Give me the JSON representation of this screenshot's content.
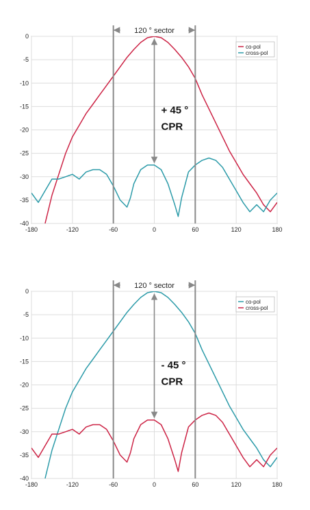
{
  "chart_data": [
    {
      "type": "line",
      "xlim": [
        -180,
        180
      ],
      "ylim": [
        -40,
        0
      ],
      "x_ticks": [
        -180,
        -120,
        -60,
        0,
        60,
        120,
        180
      ],
      "x_tick_labels": [
        "-180",
        "-120",
        "-60",
        "0",
        "60",
        "120",
        "180"
      ],
      "y_ticks": [
        0,
        -5,
        -10,
        -15,
        -20,
        -25,
        -30,
        -35,
        -40
      ],
      "y_tick_labels": [
        "0",
        "-5",
        "-10",
        "-15",
        "-20",
        "-25",
        "-30",
        "-35",
        "-40"
      ],
      "grid": true,
      "legend_position": "top-right",
      "sector_label": "120 ° sector",
      "sector_bounds": [
        -60,
        60
      ],
      "cpr_label_1": "+ 45 °",
      "cpr_label_2": "CPR",
      "cpr_arrow": [
        0,
        -27.5
      ],
      "series": [
        {
          "name": "co-pol",
          "color": "#cc2244",
          "x": [
            -160,
            -150,
            -140,
            -130,
            -120,
            -110,
            -100,
            -90,
            -80,
            -70,
            -60,
            -50,
            -40,
            -30,
            -20,
            -10,
            0,
            10,
            20,
            30,
            40,
            50,
            60,
            70,
            80,
            90,
            100,
            110,
            120,
            130,
            140,
            150,
            160,
            170,
            180
          ],
          "y": [
            -40,
            -34,
            -29.5,
            -25,
            -21.5,
            -19,
            -16.5,
            -14.5,
            -12.5,
            -10.5,
            -8.5,
            -6.5,
            -4.5,
            -2.8,
            -1.3,
            -0.3,
            0,
            -0.3,
            -1.3,
            -2.8,
            -4.5,
            -6.5,
            -9,
            -12.5,
            -15.5,
            -18.5,
            -21.5,
            -24.5,
            -27,
            -29.5,
            -31.5,
            -33.5,
            -36,
            -37.5,
            -35.5
          ]
        },
        {
          "name": "cross-pol",
          "color": "#2a9aa8",
          "x": [
            -180,
            -170,
            -160,
            -150,
            -140,
            -130,
            -120,
            -110,
            -100,
            -90,
            -80,
            -70,
            -60,
            -50,
            -40,
            -35,
            -30,
            -20,
            -10,
            0,
            10,
            20,
            30,
            35,
            40,
            50,
            60,
            70,
            80,
            90,
            100,
            110,
            120,
            130,
            140,
            150,
            160,
            170,
            180
          ],
          "y": [
            -33.5,
            -35.5,
            -33,
            -30.5,
            -30.5,
            -30,
            -29.5,
            -30.5,
            -29,
            -28.5,
            -28.5,
            -29.5,
            -32,
            -35,
            -36.5,
            -34.5,
            -31.5,
            -28.5,
            -27.5,
            -27.5,
            -28.5,
            -31.5,
            -36,
            -38.5,
            -34.5,
            -29,
            -27.5,
            -26.5,
            -26,
            -26.5,
            -28,
            -30.5,
            -33,
            -35.5,
            -37.5,
            -36,
            -37.5,
            -35,
            -33.5
          ]
        }
      ]
    },
    {
      "type": "line",
      "xlim": [
        -180,
        180
      ],
      "ylim": [
        -40,
        0
      ],
      "x_ticks": [
        -180,
        -120,
        -60,
        0,
        60,
        120,
        180
      ],
      "x_tick_labels": [
        "-180",
        "-120",
        "-60",
        "0",
        "60",
        "120",
        "180"
      ],
      "y_ticks": [
        0,
        -5,
        -10,
        -15,
        -20,
        -25,
        -30,
        -35,
        -40
      ],
      "y_tick_labels": [
        "0",
        "-5",
        "-10",
        "-15",
        "-20",
        "-25",
        "-30",
        "-35",
        "-40"
      ],
      "grid": true,
      "legend_position": "top-right",
      "sector_label": "120 ° sector",
      "sector_bounds": [
        -60,
        60
      ],
      "cpr_label_1": "- 45 °",
      "cpr_label_2": "CPR",
      "cpr_arrow": [
        0,
        -27.5
      ],
      "series": [
        {
          "name": "co-pol",
          "color": "#2a9aa8",
          "x": [
            -160,
            -150,
            -140,
            -130,
            -120,
            -110,
            -100,
            -90,
            -80,
            -70,
            -60,
            -50,
            -40,
            -30,
            -20,
            -10,
            0,
            10,
            20,
            30,
            40,
            50,
            60,
            70,
            80,
            90,
            100,
            110,
            120,
            130,
            140,
            150,
            160,
            170,
            180
          ],
          "y": [
            -40,
            -34,
            -29.5,
            -25,
            -21.5,
            -19,
            -16.5,
            -14.5,
            -12.5,
            -10.5,
            -8.5,
            -6.5,
            -4.5,
            -2.8,
            -1.3,
            -0.3,
            0,
            -0.3,
            -1.3,
            -2.8,
            -4.5,
            -6.5,
            -9,
            -12.5,
            -15.5,
            -18.5,
            -21.5,
            -24.5,
            -27,
            -29.5,
            -31.5,
            -33.5,
            -36,
            -37.5,
            -35.5
          ]
        },
        {
          "name": "cross-pol",
          "color": "#cc2244",
          "x": [
            -180,
            -170,
            -160,
            -150,
            -140,
            -130,
            -120,
            -110,
            -100,
            -90,
            -80,
            -70,
            -60,
            -50,
            -40,
            -35,
            -30,
            -20,
            -10,
            0,
            10,
            20,
            30,
            35,
            40,
            50,
            60,
            70,
            80,
            90,
            100,
            110,
            120,
            130,
            140,
            150,
            160,
            170,
            180
          ],
          "y": [
            -33.5,
            -35.5,
            -33,
            -30.5,
            -30.5,
            -30,
            -29.5,
            -30.5,
            -29,
            -28.5,
            -28.5,
            -29.5,
            -32,
            -35,
            -36.5,
            -34.5,
            -31.5,
            -28.5,
            -27.5,
            -27.5,
            -28.5,
            -31.5,
            -36,
            -38.5,
            -34.5,
            -29,
            -27.5,
            -26.5,
            -26,
            -26.5,
            -28,
            -30.5,
            -33,
            -35.5,
            -37.5,
            -36,
            -37.5,
            -35,
            -33.5
          ]
        }
      ]
    }
  ]
}
